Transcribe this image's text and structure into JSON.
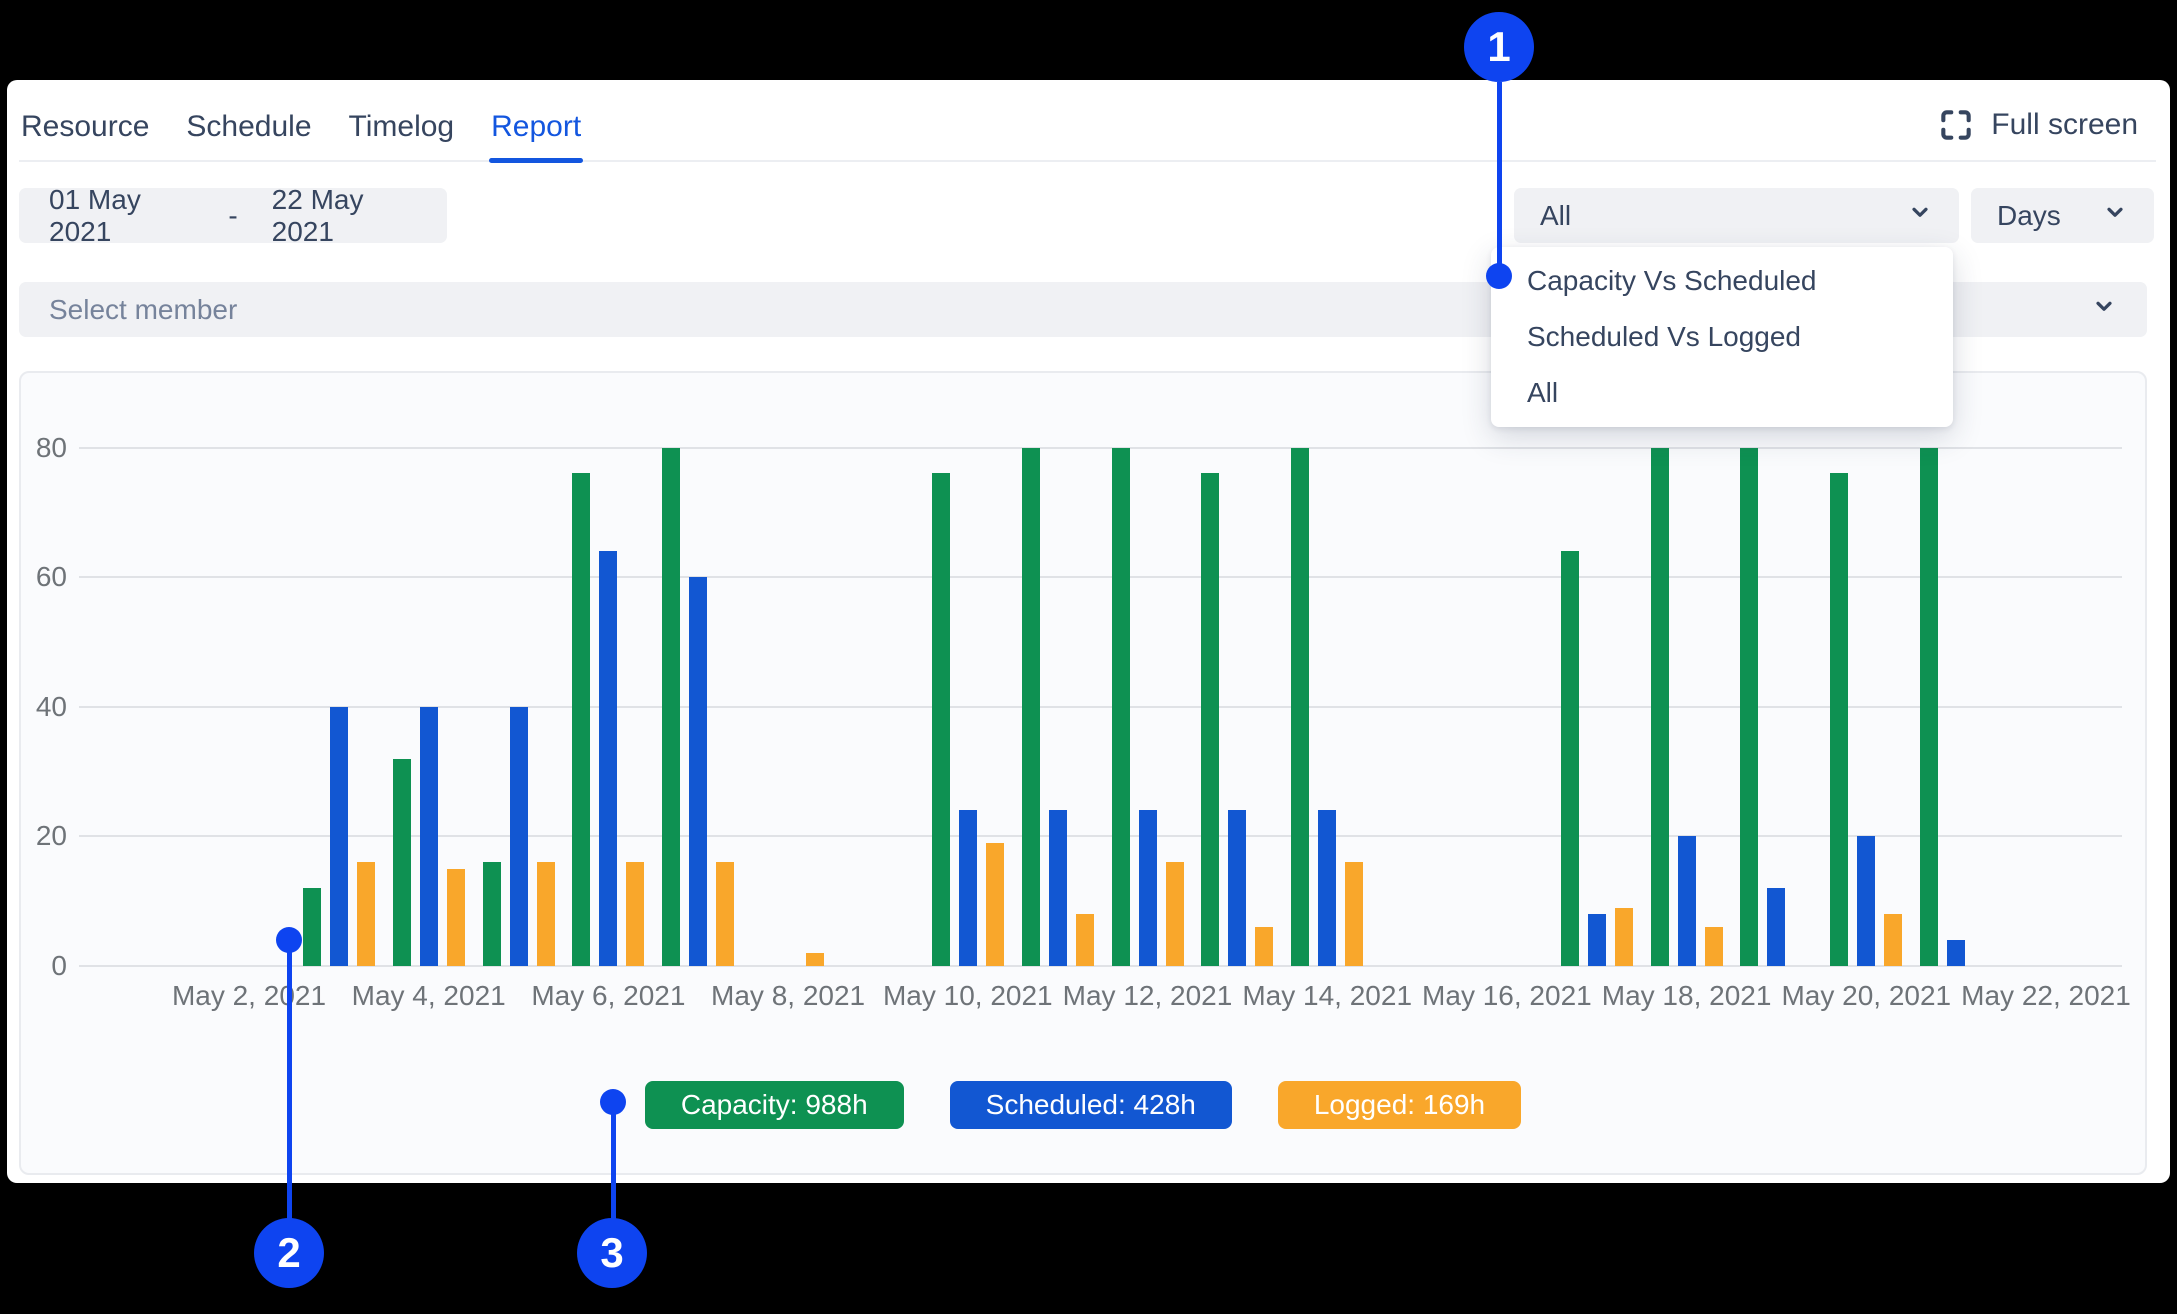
{
  "nav": {
    "tabs": [
      {
        "label": "Resource",
        "active": false
      },
      {
        "label": "Schedule",
        "active": false
      },
      {
        "label": "Timelog",
        "active": false
      },
      {
        "label": "Report",
        "active": true
      }
    ],
    "fullscreen_label": "Full screen"
  },
  "filters": {
    "date_range": {
      "start": "01 May 2021",
      "separator": "-",
      "end": "22 May 2021"
    },
    "report_type": {
      "value": "All",
      "open": true,
      "options": [
        "Capacity Vs Scheduled",
        "Scheduled Vs Logged",
        "All"
      ]
    },
    "granularity": {
      "value": "Days"
    },
    "member": {
      "placeholder": "Select member"
    }
  },
  "chart_data": {
    "type": "bar",
    "unit": "hours",
    "yticks": [
      0,
      20,
      40,
      60,
      80
    ],
    "ylim": [
      0,
      88
    ],
    "grid": true,
    "legend_position": "bottom",
    "x_tick_labels": [
      "May 2, 2021",
      "May 4, 2021",
      "May 6, 2021",
      "May 8, 2021",
      "May 10, 2021",
      "May 12, 2021",
      "May 14, 2021",
      "May 16, 2021",
      "May 18, 2021",
      "May 20, 2021",
      "May 22, 2021"
    ],
    "series": [
      {
        "name": "Capacity",
        "total_label": "Capacity: 988h",
        "color": "#0e9152"
      },
      {
        "name": "Scheduled",
        "total_label": "Scheduled: 428h",
        "color": "#1257d2"
      },
      {
        "name": "Logged",
        "total_label": "Logged: 169h",
        "color": "#f9a72b"
      }
    ],
    "days": [
      {
        "day": 2,
        "capacity": 0,
        "scheduled": 0,
        "logged": 0
      },
      {
        "day": 3,
        "capacity": 12,
        "scheduled": 40,
        "logged": 16
      },
      {
        "day": 4,
        "capacity": 32,
        "scheduled": 40,
        "logged": 15
      },
      {
        "day": 5,
        "capacity": 16,
        "scheduled": 40,
        "logged": 16
      },
      {
        "day": 6,
        "capacity": 76,
        "scheduled": 64,
        "logged": 16
      },
      {
        "day": 7,
        "capacity": 80,
        "scheduled": 60,
        "logged": 16
      },
      {
        "day": 8,
        "capacity": 0,
        "scheduled": 0,
        "logged": 2
      },
      {
        "day": 9,
        "capacity": 0,
        "scheduled": 0,
        "logged": 0
      },
      {
        "day": 10,
        "capacity": 76,
        "scheduled": 24,
        "logged": 19
      },
      {
        "day": 11,
        "capacity": 80,
        "scheduled": 24,
        "logged": 8
      },
      {
        "day": 12,
        "capacity": 80,
        "scheduled": 24,
        "logged": 16
      },
      {
        "day": 13,
        "capacity": 76,
        "scheduled": 24,
        "logged": 6
      },
      {
        "day": 14,
        "capacity": 80,
        "scheduled": 24,
        "logged": 16
      },
      {
        "day": 15,
        "capacity": 0,
        "scheduled": 0,
        "logged": 0
      },
      {
        "day": 16,
        "capacity": 0,
        "scheduled": 0,
        "logged": 0
      },
      {
        "day": 17,
        "capacity": 64,
        "scheduled": 8,
        "logged": 9
      },
      {
        "day": 18,
        "capacity": 80,
        "scheduled": 20,
        "logged": 6
      },
      {
        "day": 19,
        "capacity": 80,
        "scheduled": 12,
        "logged": 0
      },
      {
        "day": 20,
        "capacity": 76,
        "scheduled": 20,
        "logged": 8
      },
      {
        "day": 21,
        "capacity": 80,
        "scheduled": 4,
        "logged": 0
      },
      {
        "day": 22,
        "capacity": 0,
        "scheduled": 0,
        "logged": 0
      }
    ]
  },
  "annotations": {
    "color": "#0e44f0",
    "markers": [
      {
        "number": "1"
      },
      {
        "number": "2"
      },
      {
        "number": "3"
      }
    ]
  },
  "colors": {
    "accent_blue": "#1356df",
    "bar_green": "#0e9152",
    "bar_blue": "#1257d2",
    "bar_orange": "#f9a72b",
    "annotation_blue": "#0e44f0",
    "control_bg": "#f0f1f4",
    "text_navy": "#36455f"
  }
}
